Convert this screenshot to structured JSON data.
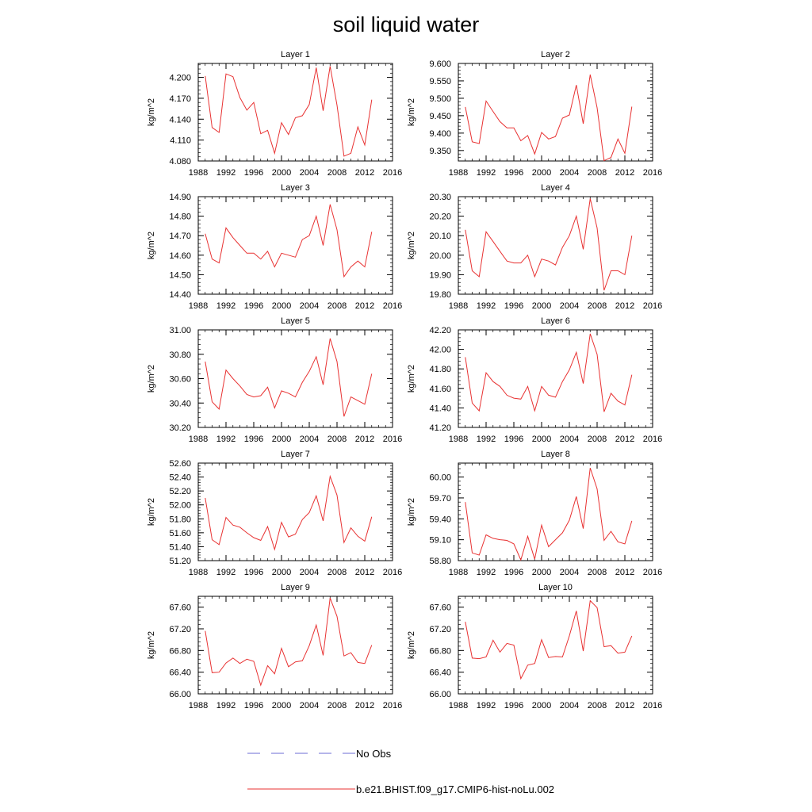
{
  "title": "soil liquid water",
  "legend": {
    "items": [
      {
        "label": "No Obs",
        "style": "dashed",
        "color": "#6b6bd6"
      },
      {
        "label": "b.e21.BHIST.f09_g17.CMIP6-hist-noLu.002",
        "style": "solid",
        "color": "#e83232"
      }
    ]
  },
  "chart_data": [
    {
      "type": "line",
      "title": "Layer 1",
      "ylabel": "kg/m^2",
      "xlim": [
        1988,
        2016
      ],
      "ylim": [
        4.08,
        4.22
      ],
      "xticks": [
        "1988",
        "1992",
        "1996",
        "2000",
        "2004",
        "2008",
        "2012",
        "2016"
      ],
      "yticks": [
        "4.080",
        "4.110",
        "4.140",
        "4.170",
        "4.200"
      ],
      "x": [
        1989,
        1990,
        1991,
        1992,
        1993,
        1994,
        1995,
        1996,
        1997,
        1998,
        1999,
        2000,
        2001,
        2002,
        2003,
        2004,
        2005,
        2006,
        2007,
        2008,
        2009,
        2010,
        2011,
        2012,
        2013
      ],
      "series": [
        {
          "name": "b.e21.BHIST.f09_g17.CMIP6-hist-noLu.002",
          "color": "#e83232",
          "values": [
            4.202,
            4.128,
            4.121,
            4.205,
            4.201,
            4.171,
            4.153,
            4.164,
            4.119,
            4.124,
            4.091,
            4.135,
            4.118,
            4.142,
            4.145,
            4.161,
            4.214,
            4.152,
            4.216,
            4.16,
            4.087,
            4.091,
            4.129,
            4.103,
            4.168
          ]
        }
      ]
    },
    {
      "type": "line",
      "title": "Layer 2",
      "ylabel": "kg/m^2",
      "xlim": [
        1988,
        2016
      ],
      "ylim": [
        9.32,
        9.6
      ],
      "xticks": [
        "1988",
        "1992",
        "1996",
        "2000",
        "2004",
        "2008",
        "2012",
        "2016"
      ],
      "yticks": [
        "9.350",
        "9.400",
        "9.450",
        "9.500",
        "9.550",
        "9.600"
      ],
      "x": [
        1989,
        1990,
        1991,
        1992,
        1993,
        1994,
        1995,
        1996,
        1997,
        1998,
        1999,
        2000,
        2001,
        2002,
        2003,
        2004,
        2005,
        2006,
        2007,
        2008,
        2009,
        2010,
        2011,
        2012,
        2013
      ],
      "series": [
        {
          "name": "b.e21.BHIST.f09_g17.CMIP6-hist-noLu.002",
          "color": "#e83232",
          "values": [
            9.475,
            9.375,
            9.37,
            9.492,
            9.462,
            9.433,
            9.415,
            9.415,
            9.378,
            9.393,
            9.34,
            9.402,
            9.383,
            9.39,
            9.443,
            9.452,
            9.538,
            9.427,
            9.568,
            9.473,
            9.321,
            9.33,
            9.383,
            9.342,
            9.476
          ]
        }
      ]
    },
    {
      "type": "line",
      "title": "Layer 3",
      "ylabel": "kg/m^2",
      "xlim": [
        1988,
        2016
      ],
      "ylim": [
        14.4,
        14.9
      ],
      "xticks": [
        "1988",
        "1992",
        "1996",
        "2000",
        "2004",
        "2008",
        "2012",
        "2016"
      ],
      "yticks": [
        "14.40",
        "14.50",
        "14.60",
        "14.70",
        "14.80",
        "14.90"
      ],
      "x": [
        1989,
        1990,
        1991,
        1992,
        1993,
        1994,
        1995,
        1996,
        1997,
        1998,
        1999,
        2000,
        2001,
        2002,
        2003,
        2004,
        2005,
        2006,
        2007,
        2008,
        2009,
        2010,
        2011,
        2012,
        2013
      ],
      "series": [
        {
          "name": "b.e21.BHIST.f09_g17.CMIP6-hist-noLu.002",
          "color": "#e83232",
          "values": [
            14.71,
            14.58,
            14.56,
            14.74,
            14.69,
            14.65,
            14.61,
            14.61,
            14.58,
            14.62,
            14.54,
            14.61,
            14.6,
            14.59,
            14.68,
            14.7,
            14.8,
            14.65,
            14.86,
            14.73,
            14.49,
            14.54,
            14.57,
            14.54,
            14.72
          ]
        }
      ]
    },
    {
      "type": "line",
      "title": "Layer 4",
      "ylabel": "kg/m^2",
      "xlim": [
        1988,
        2016
      ],
      "ylim": [
        19.8,
        20.3
      ],
      "xticks": [
        "1988",
        "1992",
        "1996",
        "2000",
        "2004",
        "2008",
        "2012",
        "2016"
      ],
      "yticks": [
        "19.80",
        "19.90",
        "20.00",
        "20.10",
        "20.20",
        "20.30"
      ],
      "x": [
        1989,
        1990,
        1991,
        1992,
        1993,
        1994,
        1995,
        1996,
        1997,
        1998,
        1999,
        2000,
        2001,
        2002,
        2003,
        2004,
        2005,
        2006,
        2007,
        2008,
        2009,
        2010,
        2011,
        2012,
        2013
      ],
      "series": [
        {
          "name": "b.e21.BHIST.f09_g17.CMIP6-hist-noLu.002",
          "color": "#e83232",
          "values": [
            20.13,
            19.92,
            19.89,
            20.12,
            20.07,
            20.02,
            19.97,
            19.96,
            19.96,
            20.0,
            19.89,
            19.98,
            19.97,
            19.95,
            20.04,
            20.1,
            20.2,
            20.03,
            20.29,
            20.14,
            19.82,
            19.92,
            19.92,
            19.9,
            20.1
          ]
        }
      ]
    },
    {
      "type": "line",
      "title": "Layer 5",
      "ylabel": "kg/m^2",
      "xlim": [
        1988,
        2016
      ],
      "ylim": [
        30.2,
        31.0
      ],
      "xticks": [
        "1988",
        "1992",
        "1996",
        "2000",
        "2004",
        "2008",
        "2012",
        "2016"
      ],
      "yticks": [
        "30.20",
        "30.40",
        "30.60",
        "30.80",
        "31.00"
      ],
      "x": [
        1989,
        1990,
        1991,
        1992,
        1993,
        1994,
        1995,
        1996,
        1997,
        1998,
        1999,
        2000,
        2001,
        2002,
        2003,
        2004,
        2005,
        2006,
        2007,
        2008,
        2009,
        2010,
        2011,
        2012,
        2013
      ],
      "series": [
        {
          "name": "b.e21.BHIST.f09_g17.CMIP6-hist-noLu.002",
          "color": "#e83232",
          "values": [
            30.74,
            30.41,
            30.35,
            30.67,
            30.6,
            30.54,
            30.47,
            30.45,
            30.46,
            30.53,
            30.36,
            30.5,
            30.48,
            30.45,
            30.57,
            30.66,
            30.78,
            30.55,
            30.93,
            30.74,
            30.29,
            30.45,
            30.42,
            30.39,
            30.64
          ]
        }
      ]
    },
    {
      "type": "line",
      "title": "Layer 6",
      "ylabel": "kg/m^2",
      "xlim": [
        1988,
        2016
      ],
      "ylim": [
        41.2,
        42.2
      ],
      "xticks": [
        "1988",
        "1992",
        "1996",
        "2000",
        "2004",
        "2008",
        "2012",
        "2016"
      ],
      "yticks": [
        "41.20",
        "41.40",
        "41.60",
        "41.80",
        "42.00",
        "42.20"
      ],
      "x": [
        1989,
        1990,
        1991,
        1992,
        1993,
        1994,
        1995,
        1996,
        1997,
        1998,
        1999,
        2000,
        2001,
        2002,
        2003,
        2004,
        2005,
        2006,
        2007,
        2008,
        2009,
        2010,
        2011,
        2012,
        2013
      ],
      "series": [
        {
          "name": "b.e21.BHIST.f09_g17.CMIP6-hist-noLu.002",
          "color": "#e83232",
          "values": [
            41.92,
            41.45,
            41.37,
            41.76,
            41.67,
            41.62,
            41.53,
            41.5,
            41.49,
            41.62,
            41.37,
            41.62,
            41.53,
            41.51,
            41.67,
            41.79,
            41.97,
            41.65,
            42.16,
            41.95,
            41.36,
            41.55,
            41.47,
            41.43,
            41.74
          ]
        }
      ]
    },
    {
      "type": "line",
      "title": "Layer 7",
      "ylabel": "kg/m^2",
      "xlim": [
        1988,
        2016
      ],
      "ylim": [
        51.2,
        52.6
      ],
      "xticks": [
        "1988",
        "1992",
        "1996",
        "2000",
        "2004",
        "2008",
        "2012",
        "2016"
      ],
      "yticks": [
        "51.20",
        "51.40",
        "51.60",
        "51.80",
        "52.00",
        "52.20",
        "52.40",
        "52.60"
      ],
      "x": [
        1989,
        1990,
        1991,
        1992,
        1993,
        1994,
        1995,
        1996,
        1997,
        1998,
        1999,
        2000,
        2001,
        2002,
        2003,
        2004,
        2005,
        2006,
        2007,
        2008,
        2009,
        2010,
        2011,
        2012,
        2013
      ],
      "series": [
        {
          "name": "b.e21.BHIST.f09_g17.CMIP6-hist-noLu.002",
          "color": "#e83232",
          "values": [
            52.1,
            51.5,
            51.43,
            51.82,
            51.71,
            51.68,
            51.6,
            51.53,
            51.49,
            51.69,
            51.36,
            51.75,
            51.54,
            51.58,
            51.79,
            51.89,
            52.13,
            51.77,
            52.41,
            52.14,
            51.46,
            51.67,
            51.55,
            51.48,
            51.83
          ]
        }
      ]
    },
    {
      "type": "line",
      "title": "Layer 8",
      "ylabel": "kg/m^2",
      "xlim": [
        1988,
        2016
      ],
      "ylim": [
        58.8,
        60.2
      ],
      "xticks": [
        "1988",
        "1992",
        "1996",
        "2000",
        "2004",
        "2008",
        "2012",
        "2016"
      ],
      "yticks": [
        "58.80",
        "59.10",
        "59.40",
        "59.70",
        "60.00"
      ],
      "x": [
        1989,
        1990,
        1991,
        1992,
        1993,
        1994,
        1995,
        1996,
        1997,
        1998,
        1999,
        2000,
        2001,
        2002,
        2003,
        2004,
        2005,
        2006,
        2007,
        2008,
        2009,
        2010,
        2011,
        2012,
        2013
      ],
      "series": [
        {
          "name": "b.e21.BHIST.f09_g17.CMIP6-hist-noLu.002",
          "color": "#e83232",
          "values": [
            59.64,
            58.91,
            58.88,
            59.17,
            59.12,
            59.1,
            59.09,
            59.04,
            58.81,
            59.15,
            58.82,
            59.31,
            59.0,
            59.1,
            59.2,
            59.38,
            59.72,
            59.26,
            60.13,
            59.83,
            59.09,
            59.22,
            59.07,
            59.04,
            59.37
          ]
        }
      ]
    },
    {
      "type": "line",
      "title": "Layer 9",
      "ylabel": "kg/m^2",
      "xlim": [
        1988,
        2016
      ],
      "ylim": [
        66.0,
        67.8
      ],
      "xticks": [
        "1988",
        "1992",
        "1996",
        "2000",
        "2004",
        "2008",
        "2012",
        "2016"
      ],
      "yticks": [
        "66.00",
        "66.40",
        "66.80",
        "67.20",
        "67.60"
      ],
      "x": [
        1989,
        1990,
        1991,
        1992,
        1993,
        1994,
        1995,
        1996,
        1997,
        1998,
        1999,
        2000,
        2001,
        2002,
        2003,
        2004,
        2005,
        2006,
        2007,
        2008,
        2009,
        2010,
        2011,
        2012,
        2013
      ],
      "series": [
        {
          "name": "b.e21.BHIST.f09_g17.CMIP6-hist-noLu.002",
          "color": "#e83232",
          "values": [
            67.16,
            66.39,
            66.4,
            66.57,
            66.66,
            66.56,
            66.64,
            66.6,
            66.16,
            66.52,
            66.37,
            66.84,
            66.5,
            66.59,
            66.61,
            66.89,
            67.27,
            66.71,
            67.77,
            67.43,
            66.7,
            66.76,
            66.58,
            66.56,
            66.9
          ]
        }
      ]
    },
    {
      "type": "line",
      "title": "Layer 10",
      "ylabel": "kg/m^2",
      "xlim": [
        1988,
        2016
      ],
      "ylim": [
        66.0,
        67.8
      ],
      "xticks": [
        "1988",
        "1992",
        "1996",
        "2000",
        "2004",
        "2008",
        "2012",
        "2016"
      ],
      "yticks": [
        "66.00",
        "66.40",
        "66.80",
        "67.20",
        "67.60"
      ],
      "x": [
        1989,
        1990,
        1991,
        1992,
        1993,
        1994,
        1995,
        1996,
        1997,
        1998,
        1999,
        2000,
        2001,
        2002,
        2003,
        2004,
        2005,
        2006,
        2007,
        2008,
        2009,
        2010,
        2011,
        2012,
        2013
      ],
      "series": [
        {
          "name": "b.e21.BHIST.f09_g17.CMIP6-hist-noLu.002",
          "color": "#e83232",
          "values": [
            67.33,
            66.66,
            66.65,
            66.68,
            66.99,
            66.77,
            66.93,
            66.9,
            66.28,
            66.53,
            66.56,
            67.0,
            66.67,
            66.69,
            66.68,
            67.07,
            67.53,
            66.79,
            67.72,
            67.59,
            66.87,
            66.89,
            66.75,
            66.77,
            67.07
          ]
        }
      ]
    }
  ]
}
